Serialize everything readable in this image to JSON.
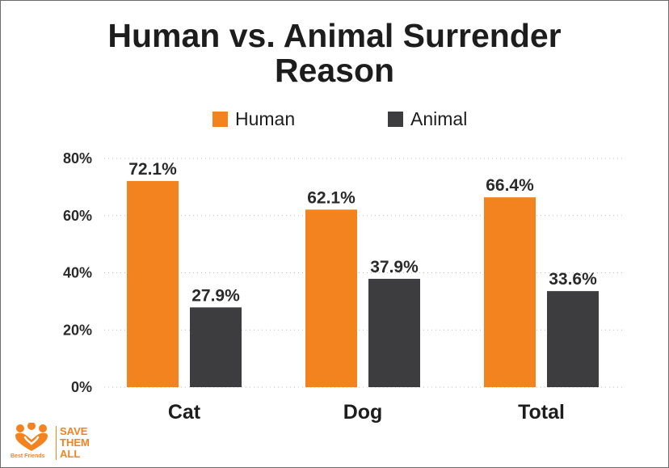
{
  "chart_data": {
    "type": "bar",
    "title_lines": [
      "Human vs. Animal Surrender",
      "Reason"
    ],
    "categories": [
      "Cat",
      "Dog",
      "Total"
    ],
    "series": [
      {
        "name": "Human",
        "color": "#f2831e",
        "values": [
          72.1,
          62.1,
          66.4
        ],
        "labels": [
          "72.1%",
          "62.1%",
          "66.4%"
        ]
      },
      {
        "name": "Animal",
        "color": "#3d3c3e",
        "values": [
          27.9,
          37.9,
          33.6
        ],
        "labels": [
          "27.9%",
          "37.9%",
          "33.6%"
        ]
      }
    ],
    "y_ticks": [
      0,
      20,
      40,
      60,
      80
    ],
    "y_tick_labels": [
      "0%",
      "20%",
      "40%",
      "60%",
      "80%"
    ],
    "ylim": [
      0,
      80
    ],
    "grid": true,
    "legend_position": "top-center"
  },
  "logo": {
    "brand": "Best Friends",
    "tagline": [
      "SAVE",
      "THEM",
      "ALL"
    ],
    "color": "#f2831e"
  }
}
